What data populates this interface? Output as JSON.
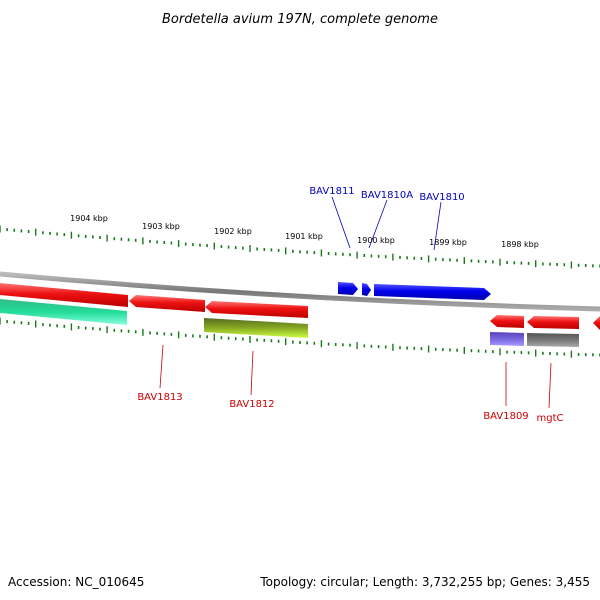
{
  "title": "Bordetella avium 197N, complete genome",
  "footer": {
    "accession": "Accession: NC_010645",
    "summary": "Topology: circular; Length: 3,732,255 bp; Genes: 3,455"
  },
  "colors": {
    "backbone": "#888888",
    "ticks": "#1a7a1a",
    "forward_gene": "#0000ee",
    "forward_label": "#0000bb",
    "reverse_gene": "#ee1111",
    "reverse_label": "#cc0000"
  },
  "ruler": {
    "unit": "kbp",
    "labels": [
      "1904 kbp",
      "1903 kbp",
      "1902 kbp",
      "1901 kbp",
      "1900 kbp",
      "1899 kbp",
      "1898 kbp"
    ]
  },
  "genes_forward": [
    {
      "label": "BAV1811"
    },
    {
      "label": "BAV1810A"
    },
    {
      "label": "BAV1810"
    }
  ],
  "genes_reverse": [
    {
      "label": "BAV1813"
    },
    {
      "label": "BAV1812"
    },
    {
      "label": "BAV1809"
    },
    {
      "label": "mgtC"
    }
  ],
  "features": [
    {
      "type": "reverse-gene-red",
      "color": "#ee1111"
    },
    {
      "type": "reverse-cds-green",
      "color": "#22dd99"
    },
    {
      "type": "reverse-cds-olive",
      "color": "#88aa22"
    },
    {
      "type": "reverse-cds-purple",
      "color": "#7766dd"
    },
    {
      "type": "reverse-cds-gray",
      "color": "#777777"
    }
  ]
}
